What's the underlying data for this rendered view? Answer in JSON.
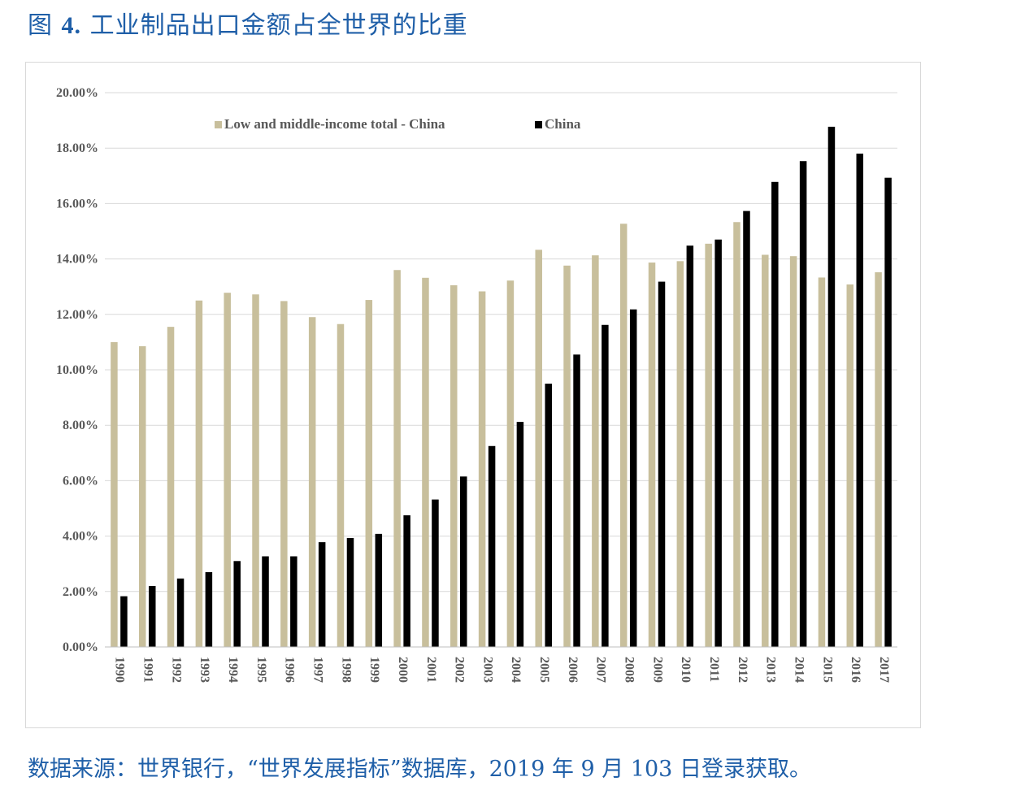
{
  "figure": {
    "title_prefix": "图",
    "title_number": "4.",
    "title_text": "工业制品出口金额占全世界的比重",
    "source_note": "数据来源：世界银行，“世界发展指标”数据库，2019 年 9 月 103 日登录获取。"
  },
  "chart_data": {
    "type": "bar",
    "title": "工业制品出口金额占全世界的比重",
    "xlabel": "",
    "ylabel": "",
    "ylim": [
      0,
      20
    ],
    "y_ticks": [
      "0.00%",
      "2.00%",
      "4.00%",
      "6.00%",
      "8.00%",
      "10.00%",
      "12.00%",
      "14.00%",
      "16.00%",
      "18.00%",
      "20.00%"
    ],
    "grid": true,
    "legend_position": "top",
    "categories": [
      "1990",
      "1991",
      "1992",
      "1993",
      "1994",
      "1995",
      "1996",
      "1997",
      "1998",
      "1999",
      "2000",
      "2001",
      "2002",
      "2003",
      "2004",
      "2005",
      "2006",
      "2007",
      "2008",
      "2009",
      "2010",
      "2011",
      "2012",
      "2013",
      "2014",
      "2015",
      "2016",
      "2017"
    ],
    "series": [
      {
        "name": "Low and middle-income total - China",
        "color": "#c8bf9c",
        "values": [
          11.0,
          10.85,
          11.55,
          12.5,
          12.78,
          12.72,
          12.48,
          11.9,
          11.65,
          12.52,
          13.6,
          13.32,
          13.05,
          12.83,
          13.22,
          14.33,
          13.76,
          14.13,
          15.27,
          13.87,
          13.92,
          14.55,
          15.33,
          14.15,
          14.1,
          13.33,
          13.08,
          13.52
        ]
      },
      {
        "name": "China",
        "color": "#000000",
        "values": [
          1.83,
          2.2,
          2.47,
          2.7,
          3.1,
          3.27,
          3.27,
          3.78,
          3.93,
          4.08,
          4.75,
          5.32,
          6.15,
          7.25,
          8.12,
          9.5,
          10.55,
          11.62,
          12.18,
          13.18,
          14.48,
          14.7,
          15.73,
          16.78,
          17.53,
          18.77,
          17.8,
          16.93
        ]
      }
    ]
  }
}
